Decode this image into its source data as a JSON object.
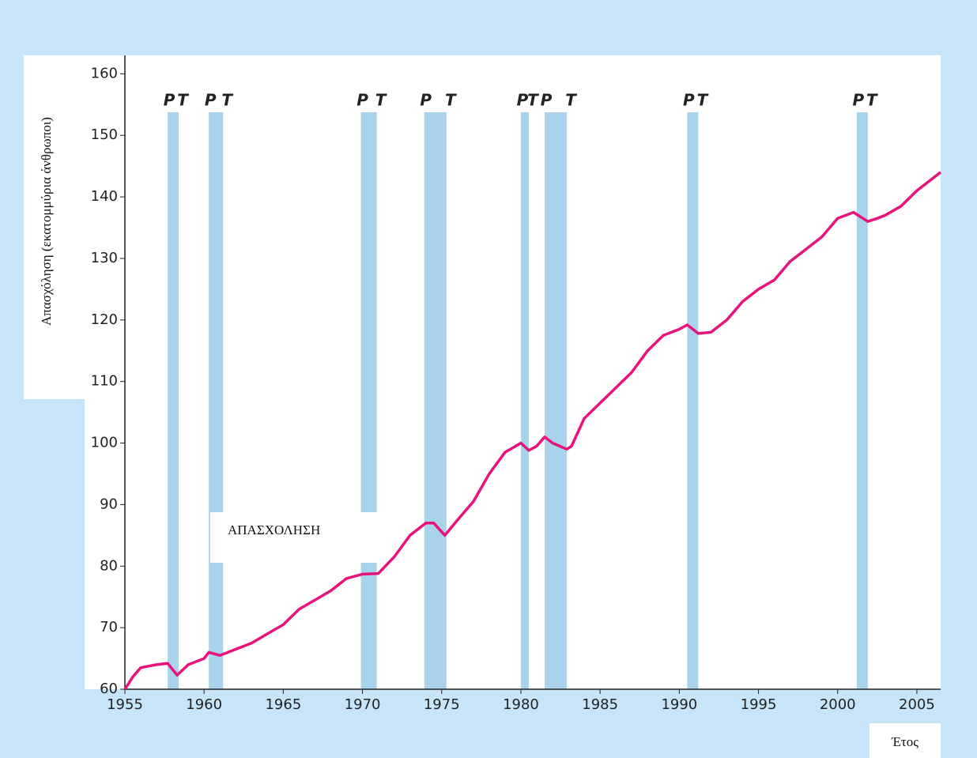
{
  "chart_data": {
    "type": "line",
    "y_axis_label": "Απασχόληση (εκατομμύρια άνθρωποι)",
    "x_axis_label": "Έτος",
    "peak_label": "P",
    "trough_label": "T",
    "recessions": [
      {
        "start": 1957.7,
        "end": 1958.4
      },
      {
        "start": 1960.3,
        "end": 1961.2
      },
      {
        "start": 1969.9,
        "end": 1970.9
      },
      {
        "start": 1973.9,
        "end": 1975.3
      },
      {
        "start": 1980.0,
        "end": 1980.5
      },
      {
        "start": 1981.5,
        "end": 1982.9
      },
      {
        "start": 1990.5,
        "end": 1991.2
      },
      {
        "start": 2001.2,
        "end": 2001.9
      }
    ],
    "x": [
      1955,
      1955.5,
      1956,
      1957,
      1957.7,
      1958.3,
      1959,
      1960,
      1960.3,
      1961,
      1962,
      1963,
      1964,
      1965,
      1966,
      1967,
      1968,
      1969,
      1970,
      1971,
      1972,
      1973,
      1974,
      1974.5,
      1975.2,
      1976,
      1977,
      1978,
      1979,
      1980,
      1980.5,
      1981,
      1981.5,
      1982,
      1982.9,
      1983.2,
      1984,
      1985,
      1986,
      1987,
      1988,
      1989,
      1990,
      1990.5,
      1991.2,
      1992,
      1993,
      1994,
      1995,
      1996,
      1997,
      1998,
      1999,
      2000,
      2001,
      2001.9,
      2002.5,
      2003,
      2004,
      2005,
      2006.5
    ],
    "series": [
      {
        "name": "ΑΠΑΣΧΟΛΗΣΗ",
        "color": "#e8137a",
        "values": [
          60,
          62,
          63.5,
          64,
          64.2,
          62.3,
          64,
          65,
          66,
          65.5,
          66.5,
          67.5,
          69,
          70.5,
          73,
          74.5,
          76,
          78,
          78.7,
          78.8,
          81.5,
          85,
          87,
          87,
          85,
          87.5,
          90.5,
          95,
          98.5,
          100,
          98.8,
          99.5,
          101,
          100,
          99,
          99.5,
          104,
          106.5,
          109,
          111.5,
          115,
          117.5,
          118.5,
          119.2,
          117.8,
          118,
          120,
          123,
          125,
          126.5,
          129.5,
          131.5,
          133.5,
          136.5,
          137.5,
          136,
          136.5,
          137,
          138.5,
          141,
          144
        ]
      }
    ],
    "band_color": "#a9d3ea",
    "xlim": [
      1955,
      2006.5
    ],
    "ylim": [
      60,
      163
    ],
    "xticks": [
      1955,
      1960,
      1965,
      1970,
      1975,
      1980,
      1985,
      1990,
      1995,
      2000,
      2005
    ],
    "yticks": [
      60,
      70,
      80,
      90,
      100,
      110,
      120,
      130,
      140,
      150,
      160
    ]
  }
}
